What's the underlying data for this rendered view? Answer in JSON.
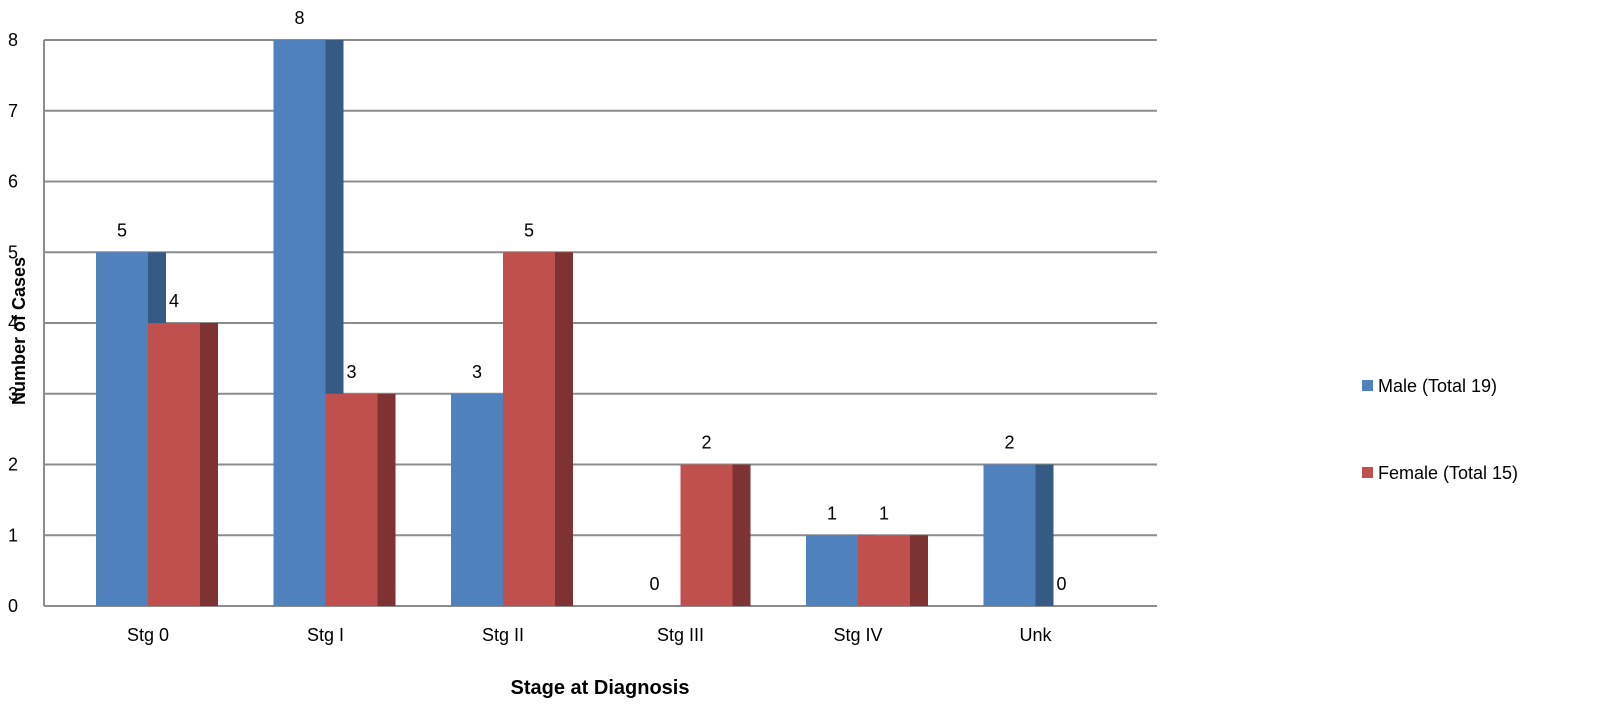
{
  "chart_data": {
    "type": "bar",
    "title": "",
    "xlabel": "Stage at Diagnosis",
    "ylabel": "Number of Cases",
    "categories": [
      "Stg 0",
      "Stg I",
      "Stg II",
      "Stg III",
      "Stg IV",
      "Unk"
    ],
    "series": [
      {
        "name": "Male (Total 19)",
        "values": [
          5,
          8,
          3,
          0,
          1,
          2
        ],
        "color": "#4F81BD",
        "side_color": "#355B85"
      },
      {
        "name": "Female (Total 15)",
        "values": [
          4,
          3,
          5,
          2,
          1,
          0
        ],
        "color": "#C0504D",
        "side_color": "#7E3231"
      }
    ],
    "ylim": [
      0,
      8
    ],
    "yticks": [
      0,
      1,
      2,
      3,
      4,
      5,
      6,
      7,
      8
    ],
    "grid": true,
    "legend_position": "right",
    "data_labels": true,
    "style": "3d-clustered-column"
  }
}
